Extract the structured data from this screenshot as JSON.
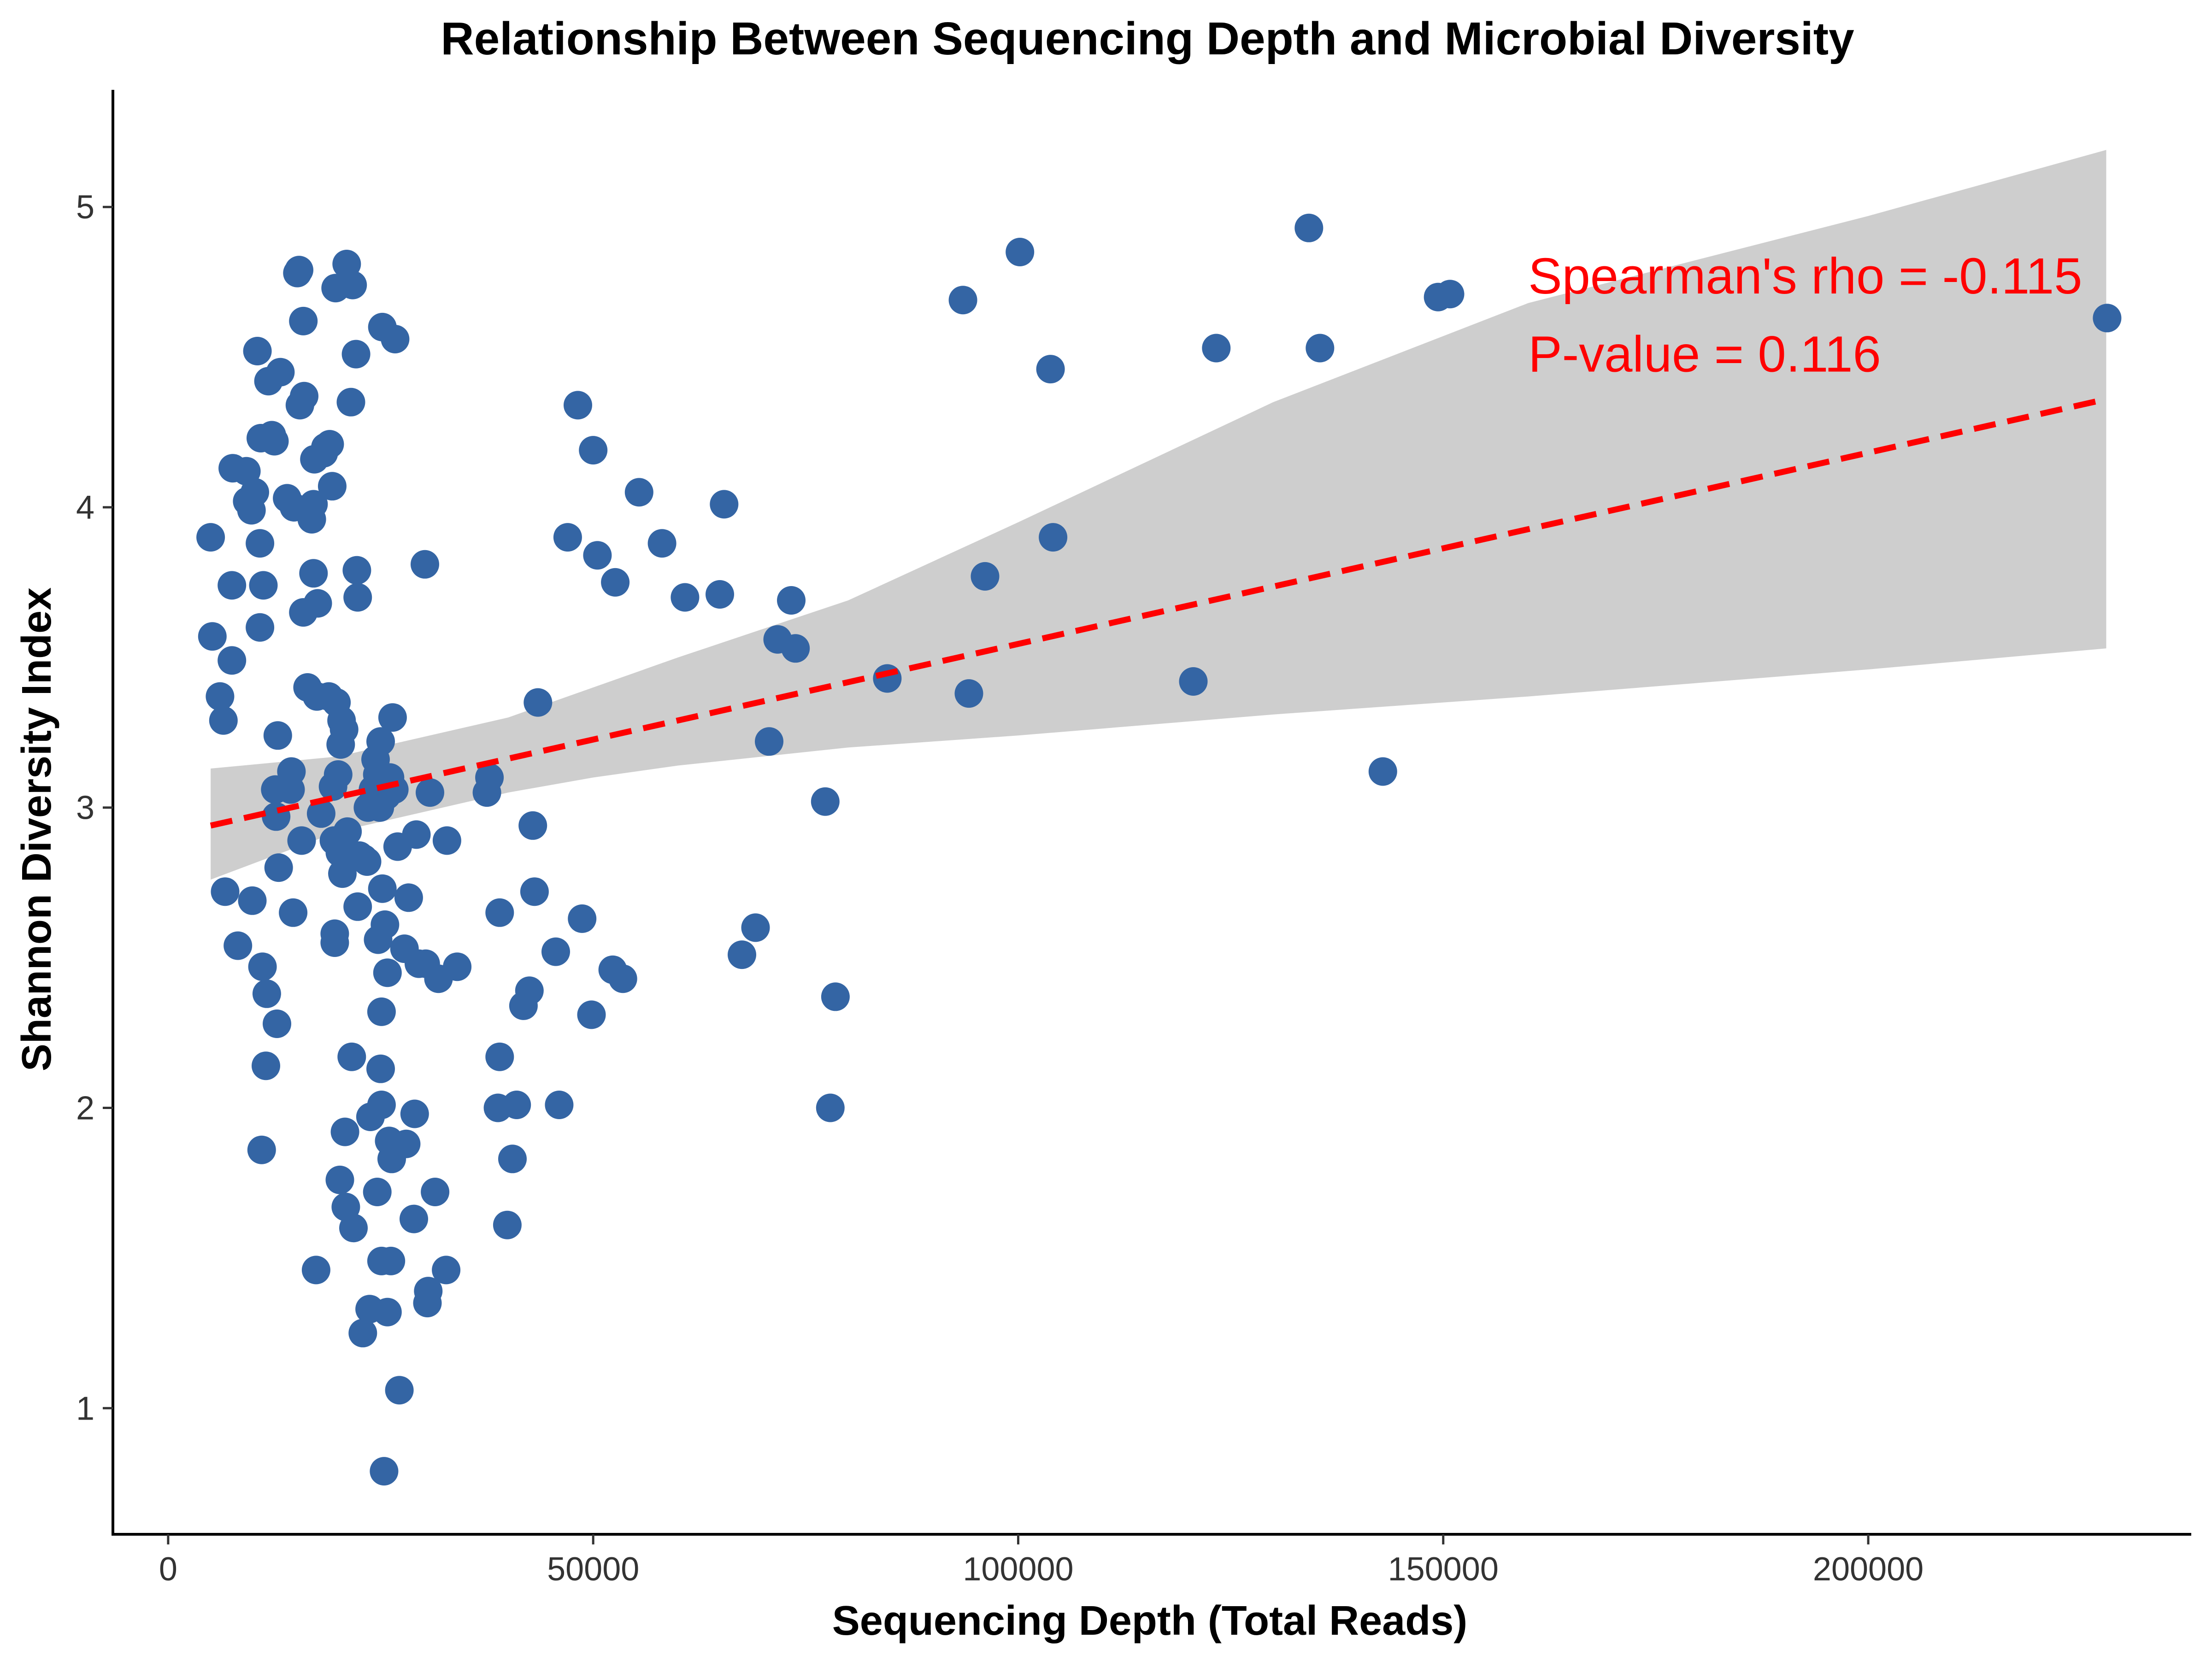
{
  "chart_data": {
    "type": "scatter",
    "title": "Relationship Between Sequencing Depth and Microbial Diversity",
    "xlabel": "Sequencing Depth (Total Reads)",
    "ylabel": "Shannon Diversity Index",
    "xlim": [
      -6500,
      238000
    ],
    "ylim": [
      0.58,
      5.39
    ],
    "x_ticks": [
      0,
      50000,
      100000,
      150000,
      200000
    ],
    "y_ticks": [
      1,
      2,
      3,
      4,
      5
    ],
    "grid": false,
    "legend": "none",
    "annotations": [
      "Spearman's rho = -0.115",
      "P-value = 0.116"
    ],
    "point_color": "#3465a4",
    "trend_color": "#ff0000",
    "ribbon_color": "#bebebe",
    "trend": {
      "x": [
        5000,
        228000
      ],
      "y": [
        2.94,
        4.36
      ]
    },
    "ribbon": {
      "x": [
        5000,
        20000,
        40000,
        50000,
        60000,
        80000,
        100000,
        130000,
        160000,
        200000,
        228000
      ],
      "lower": [
        2.76,
        2.92,
        3.05,
        3.1,
        3.14,
        3.2,
        3.24,
        3.31,
        3.37,
        3.46,
        3.53
      ],
      "upper": [
        3.13,
        3.17,
        3.3,
        3.4,
        3.5,
        3.69,
        3.95,
        4.35,
        4.68,
        4.97,
        5.19
      ]
    },
    "points": [
      [
        5000,
        3.9
      ],
      [
        5200,
        3.57
      ],
      [
        6100,
        3.37
      ],
      [
        6500,
        3.29
      ],
      [
        6700,
        2.72
      ],
      [
        7500,
        3.74
      ],
      [
        7500,
        3.49
      ],
      [
        7600,
        4.13
      ],
      [
        8200,
        2.54
      ],
      [
        9200,
        4.12
      ],
      [
        9300,
        4.02
      ],
      [
        9800,
        3.99
      ],
      [
        9900,
        2.69
      ],
      [
        10200,
        4.05
      ],
      [
        10500,
        4.52
      ],
      [
        10800,
        3.88
      ],
      [
        10800,
        3.6
      ],
      [
        10900,
        4.23
      ],
      [
        11000,
        1.86
      ],
      [
        11100,
        2.47
      ],
      [
        11200,
        3.74
      ],
      [
        11500,
        2.14
      ],
      [
        11600,
        2.38
      ],
      [
        11800,
        4.42
      ],
      [
        12000,
        4.23
      ],
      [
        12200,
        4.24
      ],
      [
        12500,
        4.22
      ],
      [
        12600,
        3.06
      ],
      [
        12700,
        2.97
      ],
      [
        12800,
        2.28
      ],
      [
        12900,
        3.24
      ],
      [
        13000,
        2.8
      ],
      [
        13200,
        4.45
      ],
      [
        14000,
        4.03
      ],
      [
        14400,
        3.06
      ],
      [
        14500,
        3.12
      ],
      [
        14700,
        2.65
      ],
      [
        14800,
        4.0
      ],
      [
        15200,
        4.78
      ],
      [
        15400,
        4.79
      ],
      [
        15500,
        4.34
      ],
      [
        15700,
        2.89
      ],
      [
        15900,
        4.62
      ],
      [
        15900,
        3.65
      ],
      [
        16000,
        4.37
      ],
      [
        16400,
        3.4
      ],
      [
        16900,
        3.96
      ],
      [
        17100,
        4.01
      ],
      [
        17100,
        3.78
      ],
      [
        17200,
        4.16
      ],
      [
        17400,
        1.46
      ],
      [
        17500,
        3.37
      ],
      [
        17600,
        3.68
      ],
      [
        18000,
        2.98
      ],
      [
        18300,
        4.18
      ],
      [
        18500,
        4.2
      ],
      [
        18900,
        3.37
      ],
      [
        19000,
        4.21
      ],
      [
        19300,
        4.07
      ],
      [
        19400,
        3.07
      ],
      [
        19500,
        2.89
      ],
      [
        19600,
        2.58
      ],
      [
        19600,
        2.55
      ],
      [
        19700,
        4.73
      ],
      [
        19800,
        3.35
      ],
      [
        20000,
        3.11
      ],
      [
        20200,
        2.85
      ],
      [
        20200,
        1.76
      ],
      [
        20300,
        3.21
      ],
      [
        20400,
        3.29
      ],
      [
        20500,
        2.78
      ],
      [
        20700,
        3.26
      ],
      [
        20800,
        1.92
      ],
      [
        20900,
        1.67
      ],
      [
        21000,
        4.81
      ],
      [
        21100,
        2.92
      ],
      [
        21500,
        4.35
      ],
      [
        21600,
        2.17
      ],
      [
        21700,
        4.74
      ],
      [
        21800,
        1.6
      ],
      [
        22100,
        4.51
      ],
      [
        22200,
        3.79
      ],
      [
        22300,
        3.7
      ],
      [
        22300,
        2.67
      ],
      [
        22500,
        2.84
      ],
      [
        22900,
        1.25
      ],
      [
        23000,
        2.83
      ],
      [
        23400,
        2.82
      ],
      [
        23500,
        3.0
      ],
      [
        23700,
        1.33
      ],
      [
        23800,
        1.97
      ],
      [
        24100,
        3.06
      ],
      [
        24400,
        3.16
      ],
      [
        24600,
        3.11
      ],
      [
        24600,
        1.72
      ],
      [
        24700,
        2.56
      ],
      [
        24900,
        3.0
      ],
      [
        25000,
        3.22
      ],
      [
        25000,
        2.13
      ],
      [
        25100,
        2.01
      ],
      [
        25100,
        1.49
      ],
      [
        25100,
        2.32
      ],
      [
        25200,
        2.73
      ],
      [
        25200,
        4.6
      ],
      [
        25400,
        0.79
      ],
      [
        25500,
        2.61
      ],
      [
        25700,
        3.04
      ],
      [
        25800,
        1.32
      ],
      [
        25800,
        2.45
      ],
      [
        26000,
        1.89
      ],
      [
        26100,
        3.1
      ],
      [
        26200,
        1.49
      ],
      [
        26300,
        1.83
      ],
      [
        26400,
        3.3
      ],
      [
        26600,
        3.06
      ],
      [
        26700,
        4.56
      ],
      [
        27000,
        2.87
      ],
      [
        27200,
        1.06
      ],
      [
        27800,
        2.53
      ],
      [
        28000,
        1.88
      ],
      [
        28300,
        2.7
      ],
      [
        28900,
        1.63
      ],
      [
        29000,
        1.98
      ],
      [
        29200,
        2.91
      ],
      [
        29500,
        2.48
      ],
      [
        30200,
        3.81
      ],
      [
        30300,
        2.48
      ],
      [
        30500,
        1.35
      ],
      [
        30600,
        1.39
      ],
      [
        30800,
        3.05
      ],
      [
        31400,
        1.72
      ],
      [
        31800,
        2.43
      ],
      [
        32700,
        1.46
      ],
      [
        32800,
        2.89
      ],
      [
        34000,
        2.47
      ],
      [
        37500,
        3.05
      ],
      [
        37800,
        3.1
      ],
      [
        38800,
        2.0
      ],
      [
        39000,
        2.65
      ],
      [
        39000,
        2.17
      ],
      [
        39900,
        1.61
      ],
      [
        40500,
        1.83
      ],
      [
        41000,
        2.01
      ],
      [
        41800,
        2.34
      ],
      [
        42500,
        2.39
      ],
      [
        42900,
        2.94
      ],
      [
        43100,
        2.72
      ],
      [
        43500,
        3.35
      ],
      [
        45600,
        2.52
      ],
      [
        46000,
        2.01
      ],
      [
        47000,
        3.9
      ],
      [
        48200,
        4.34
      ],
      [
        48700,
        2.63
      ],
      [
        49800,
        2.31
      ],
      [
        50000,
        4.19
      ],
      [
        50500,
        3.84
      ],
      [
        52300,
        2.46
      ],
      [
        52600,
        3.75
      ],
      [
        53500,
        2.43
      ],
      [
        55400,
        4.05
      ],
      [
        58100,
        3.88
      ],
      [
        60800,
        3.7
      ],
      [
        64900,
        3.71
      ],
      [
        65400,
        4.01
      ],
      [
        67500,
        2.51
      ],
      [
        69100,
        2.6
      ],
      [
        70700,
        3.22
      ],
      [
        71700,
        3.56
      ],
      [
        73300,
        3.69
      ],
      [
        73800,
        3.53
      ],
      [
        77300,
        3.02
      ],
      [
        77900,
        2.0
      ],
      [
        78500,
        2.37
      ],
      [
        84600,
        3.43
      ],
      [
        93500,
        4.69
      ],
      [
        94200,
        3.38
      ],
      [
        96100,
        3.77
      ],
      [
        100200,
        4.85
      ],
      [
        103800,
        4.46
      ],
      [
        104100,
        3.9
      ],
      [
        120600,
        3.42
      ],
      [
        123300,
        4.53
      ],
      [
        134200,
        4.93
      ],
      [
        135500,
        4.53
      ],
      [
        142900,
        3.12
      ],
      [
        149400,
        4.7
      ],
      [
        150800,
        4.71
      ],
      [
        228100,
        4.63
      ]
    ]
  }
}
